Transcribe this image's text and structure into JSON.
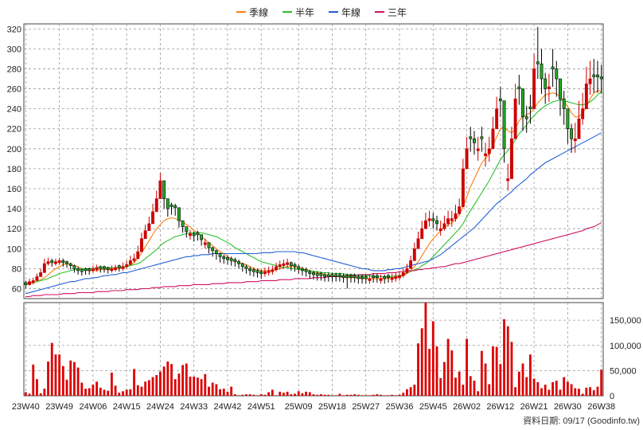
{
  "colors": {
    "up": "#cc0000",
    "down": "#22aa22",
    "grid": "#9a9a9a",
    "volume": "#dd0000"
  },
  "footer": {
    "source_text": "資料日期: 09/17  (Goodinfo.tw)"
  },
  "chart_data": {
    "type": "candlestick",
    "legend": [
      {
        "name": "季線",
        "color": "#ff7f0e"
      },
      {
        "name": "半年",
        "color": "#2bbf2b"
      },
      {
        "name": "年線",
        "color": "#1f5fd6"
      },
      {
        "name": "三年",
        "color": "#d01060"
      }
    ],
    "price_ylim": [
      50,
      325
    ],
    "price_yticks": [
      60,
      80,
      100,
      120,
      140,
      160,
      180,
      200,
      220,
      240,
      260,
      280,
      300,
      320
    ],
    "volume_ylim": [
      0,
      185000
    ],
    "volume_yticks": [
      0,
      50000,
      100000,
      150000
    ],
    "volume_ytick_labels": [
      "0",
      "50,000",
      "100,000",
      "150,000"
    ],
    "x_labels": [
      "23W40",
      "23W49",
      "24W06",
      "24W15",
      "24W24",
      "24W33",
      "24W42",
      "24W51",
      "25W09",
      "25W18",
      "25W27",
      "25W36",
      "25W45",
      "26W02",
      "26W12",
      "26W21",
      "26W30",
      "26W38"
    ],
    "x_label_index": [
      0,
      9,
      18,
      27,
      36,
      45,
      54,
      63,
      73,
      82,
      91,
      100,
      109,
      118,
      127,
      136,
      145,
      154
    ],
    "n_weeks": 155,
    "close": [
      64,
      67,
      68,
      72,
      76,
      85,
      87,
      86,
      87,
      88,
      86,
      85,
      83,
      80,
      78,
      77,
      78,
      78,
      80,
      81,
      80,
      80,
      79,
      80,
      81,
      81,
      82,
      84,
      88,
      90,
      97,
      110,
      118,
      125,
      137,
      150,
      168,
      150,
      140,
      142,
      141,
      128,
      122,
      117,
      115,
      113,
      114,
      109,
      106,
      101,
      98,
      95,
      92,
      90,
      89,
      88,
      87,
      85,
      82,
      80,
      78,
      77,
      76,
      75,
      77,
      78,
      79,
      82,
      84,
      85,
      86,
      83,
      82,
      80,
      78,
      77,
      75,
      74,
      73,
      73,
      72,
      72,
      72,
      72,
      72,
      71,
      71,
      71,
      71,
      70,
      70,
      70,
      70,
      71,
      71,
      70,
      70,
      71,
      71,
      72,
      73,
      76,
      80,
      88,
      100,
      110,
      120,
      128,
      130,
      128,
      125,
      120,
      125,
      130,
      130,
      135,
      142,
      180,
      200,
      210,
      206,
      200,
      210,
      195,
      200,
      220,
      240,
      248,
      200,
      170,
      210,
      250,
      260,
      232,
      230,
      240,
      280,
      285,
      270,
      260,
      262,
      280,
      270,
      250,
      240,
      220,
      210,
      210,
      230,
      240,
      265,
      270,
      272,
      272,
      270
    ],
    "high": [
      68,
      70,
      71,
      75,
      80,
      90,
      91,
      90,
      90,
      91,
      90,
      88,
      86,
      84,
      82,
      80,
      81,
      81,
      83,
      84,
      83,
      83,
      82,
      83,
      84,
      84,
      86,
      88,
      93,
      95,
      103,
      116,
      124,
      132,
      145,
      158,
      176,
      158,
      145,
      146,
      145,
      132,
      126,
      121,
      119,
      117,
      118,
      113,
      110,
      105,
      102,
      99,
      96,
      94,
      93,
      92,
      91,
      89,
      86,
      84,
      82,
      81,
      80,
      79,
      81,
      82,
      83,
      86,
      88,
      89,
      90,
      87,
      86,
      84,
      82,
      81,
      79,
      78,
      77,
      77,
      76,
      76,
      76,
      76,
      76,
      75,
      75,
      75,
      75,
      74,
      74,
      74,
      74,
      75,
      75,
      74,
      74,
      75,
      75,
      76,
      77,
      80,
      85,
      93,
      106,
      117,
      128,
      136,
      138,
      136,
      133,
      128,
      133,
      138,
      138,
      144,
      150,
      190,
      212,
      222,
      218,
      212,
      222,
      206,
      212,
      232,
      252,
      262,
      215,
      185,
      222,
      265,
      274,
      245,
      243,
      254,
      295,
      322,
      300,
      276,
      275,
      300,
      288,
      268,
      258,
      235,
      225,
      226,
      248,
      256,
      282,
      288,
      290,
      288,
      284
    ],
    "low": [
      60,
      63,
      64,
      68,
      72,
      80,
      83,
      82,
      83,
      84,
      82,
      81,
      79,
      76,
      74,
      73,
      74,
      74,
      76,
      77,
      76,
      76,
      75,
      76,
      77,
      77,
      78,
      80,
      84,
      86,
      92,
      104,
      112,
      118,
      130,
      142,
      156,
      140,
      132,
      134,
      133,
      121,
      116,
      111,
      109,
      107,
      108,
      103,
      100,
      95,
      92,
      89,
      86,
      85,
      84,
      83,
      82,
      80,
      77,
      75,
      73,
      72,
      71,
      70,
      72,
      73,
      74,
      77,
      79,
      80,
      81,
      78,
      77,
      75,
      73,
      72,
      70,
      69,
      68,
      68,
      67,
      67,
      67,
      67,
      67,
      66,
      60,
      66,
      66,
      65,
      65,
      65,
      65,
      66,
      66,
      65,
      65,
      66,
      66,
      67,
      68,
      71,
      75,
      83,
      94,
      104,
      113,
      120,
      122,
      120,
      118,
      113,
      118,
      122,
      122,
      127,
      134,
      168,
      188,
      197,
      194,
      188,
      197,
      182,
      187,
      206,
      225,
      232,
      186,
      158,
      196,
      234,
      244,
      218,
      216,
      225,
      262,
      270,
      255,
      245,
      247,
      262,
      252,
      233,
      224,
      205,
      196,
      196,
      214,
      224,
      248,
      254,
      256,
      256,
      255
    ],
    "up_weeks": [
      1,
      2,
      3,
      4,
      5,
      6,
      8,
      9,
      18,
      19,
      23,
      24,
      26,
      27,
      28,
      29,
      30,
      31,
      32,
      33,
      34,
      35,
      36,
      44,
      48,
      64,
      65,
      66,
      67,
      68,
      69,
      70,
      92,
      95,
      98,
      99,
      100,
      101,
      102,
      103,
      104,
      105,
      106,
      107,
      108,
      111,
      112,
      113,
      114,
      115,
      116,
      117,
      118,
      121,
      123,
      124,
      125,
      126,
      129,
      130,
      131,
      136,
      140,
      147,
      148,
      149,
      150,
      151
    ],
    "volume": [
      7000,
      4000,
      62000,
      33000,
      5000,
      14000,
      68000,
      105000,
      82000,
      82000,
      59000,
      32000,
      70000,
      67000,
      56000,
      26000,
      14000,
      15000,
      22000,
      28000,
      16000,
      12000,
      10000,
      46000,
      20000,
      6000,
      9000,
      12000,
      13000,
      53000,
      21000,
      18000,
      28000,
      31000,
      37000,
      41000,
      48000,
      58000,
      68000,
      63000,
      33000,
      44000,
      61000,
      64000,
      38000,
      38000,
      36000,
      33000,
      43000,
      18000,
      26000,
      23000,
      13000,
      14000,
      8000,
      18000,
      3000,
      1000,
      2000,
      3000,
      3000,
      2000,
      1000,
      3000,
      2000,
      7000,
      12000,
      1000,
      8000,
      6000,
      8000,
      3000,
      4000,
      9000,
      5000,
      8000,
      7000,
      3000,
      2000,
      3000,
      2000,
      2000,
      1000,
      1000,
      4000,
      1000,
      2000,
      2000,
      3000,
      2000,
      1000,
      1000,
      1000,
      2000,
      3000,
      2000,
      1000,
      1000,
      2000,
      1000,
      2000,
      6000,
      13000,
      17000,
      22000,
      104000,
      134000,
      185000,
      93000,
      148000,
      98000,
      35000,
      67000,
      113000,
      90000,
      36000,
      48000,
      22000,
      113000,
      39000,
      30000,
      9000,
      89000,
      64000,
      23000,
      98000,
      97000,
      63000,
      152000,
      138000,
      107000,
      17000,
      48000,
      64000,
      37000,
      82000,
      34000,
      27000,
      15000,
      22000,
      12000,
      27000,
      30000,
      12000,
      37000,
      28000,
      23000,
      15000,
      14000,
      4000,
      16000,
      17000,
      11000,
      18000,
      52000
    ],
    "ma_quarter": [
      64,
      65,
      66,
      67,
      69,
      71,
      74,
      77,
      80,
      82,
      84,
      85,
      84,
      83,
      82,
      80,
      79,
      78,
      78,
      78,
      79,
      79,
      79,
      79,
      80,
      80,
      81,
      82,
      84,
      86,
      90,
      96,
      102,
      108,
      114,
      120,
      124,
      128,
      130,
      131,
      130,
      129,
      127,
      124,
      122,
      118,
      116,
      112,
      109,
      106,
      103,
      100,
      97,
      95,
      92,
      90,
      88,
      86,
      85,
      84,
      82,
      80,
      79,
      78,
      78,
      78,
      78,
      79,
      80,
      81,
      82,
      82,
      82,
      81,
      80,
      79,
      78,
      77,
      76,
      75,
      74,
      73,
      73,
      72,
      72,
      71,
      71,
      71,
      71,
      71,
      70,
      70,
      70,
      70,
      70,
      70,
      70,
      70,
      71,
      71,
      72,
      73,
      75,
      78,
      82,
      87,
      93,
      99,
      105,
      110,
      114,
      118,
      121,
      124,
      126,
      129,
      134,
      142,
      152,
      162,
      170,
      178,
      186,
      190,
      195,
      203,
      212,
      220,
      222,
      218,
      216,
      220,
      228,
      232,
      234,
      236,
      240,
      246,
      250,
      254,
      255,
      256,
      255,
      252,
      248,
      242,
      236,
      232,
      232,
      236,
      242,
      250,
      256,
      258,
      258
    ],
    "ma_half": [
      65,
      66,
      66,
      67,
      68,
      69,
      70,
      72,
      73,
      75,
      76,
      77,
      78,
      79,
      80,
      80,
      80,
      80,
      80,
      81,
      81,
      81,
      81,
      81,
      81,
      81,
      82,
      82,
      83,
      84,
      85,
      87,
      90,
      93,
      96,
      99,
      103,
      106,
      108,
      110,
      112,
      113,
      114,
      115,
      116,
      116,
      116,
      116,
      115,
      114,
      113,
      112,
      110,
      108,
      106,
      104,
      101,
      99,
      97,
      95,
      93,
      91,
      89,
      87,
      86,
      85,
      84,
      83,
      82,
      81,
      81,
      80,
      80,
      79,
      79,
      78,
      78,
      77,
      77,
      76,
      76,
      76,
      75,
      75,
      75,
      75,
      74,
      74,
      74,
      73,
      73,
      73,
      73,
      72,
      72,
      72,
      72,
      72,
      72,
      73,
      73,
      74,
      76,
      77,
      79,
      80,
      83,
      85,
      88,
      92,
      96,
      100,
      104,
      108,
      112,
      116,
      120,
      125,
      132,
      138,
      144,
      150,
      156,
      162,
      168,
      175,
      182,
      189,
      194,
      198,
      203,
      209,
      215,
      219,
      224,
      229,
      233,
      237,
      240,
      243,
      245,
      247,
      248,
      249,
      248,
      247,
      246,
      245,
      244,
      244,
      245,
      247,
      250,
      254,
      257
    ],
    "ma_year": [
      55,
      56,
      57,
      58,
      59,
      60,
      61,
      62,
      63,
      64,
      65,
      66,
      67,
      67,
      68,
      69,
      70,
      70,
      71,
      71,
      72,
      73,
      73,
      74,
      74,
      75,
      76,
      76,
      77,
      78,
      79,
      80,
      81,
      82,
      83,
      84,
      85,
      86,
      87,
      88,
      89,
      90,
      91,
      92,
      92,
      93,
      93,
      94,
      94,
      94,
      95,
      95,
      95,
      95,
      95,
      95,
      95,
      95,
      95,
      95,
      95,
      95,
      95,
      96,
      96,
      96,
      96,
      97,
      97,
      97,
      97,
      97,
      97,
      96,
      96,
      95,
      94,
      93,
      92,
      91,
      90,
      89,
      88,
      87,
      86,
      85,
      84,
      83,
      82,
      81,
      80,
      80,
      79,
      78,
      78,
      78,
      78,
      79,
      79,
      80,
      80,
      81,
      82,
      83,
      84,
      85,
      86,
      87,
      88,
      90,
      92,
      94,
      97,
      100,
      103,
      106,
      109,
      112,
      115,
      118,
      121,
      125,
      129,
      133,
      137,
      141,
      145,
      148,
      151,
      154,
      157,
      161,
      164,
      167,
      170,
      174,
      177,
      180,
      183,
      186,
      188,
      190,
      192,
      194,
      196,
      198,
      200,
      202,
      204,
      206,
      208,
      210,
      212,
      214,
      216
    ],
    "ma_three": [
      52,
      52,
      53,
      53,
      53,
      54,
      54,
      54,
      54,
      54,
      55,
      55,
      55,
      55,
      56,
      56,
      56,
      56,
      56,
      57,
      57,
      57,
      57,
      58,
      58,
      58,
      58,
      59,
      59,
      59,
      59,
      60,
      60,
      60,
      61,
      61,
      61,
      62,
      62,
      62,
      62,
      63,
      63,
      63,
      63,
      64,
      64,
      64,
      64,
      64,
      65,
      65,
      65,
      65,
      66,
      66,
      66,
      66,
      66,
      67,
      67,
      67,
      67,
      68,
      68,
      68,
      68,
      68,
      69,
      69,
      69,
      69,
      70,
      70,
      70,
      70,
      70,
      71,
      71,
      71,
      71,
      72,
      72,
      72,
      72,
      73,
      73,
      73,
      73,
      74,
      74,
      74,
      74,
      75,
      75,
      75,
      75,
      76,
      76,
      76,
      77,
      77,
      78,
      78,
      78,
      79,
      79,
      80,
      80,
      81,
      81,
      82,
      82,
      83,
      84,
      85,
      85,
      86,
      87,
      88,
      89,
      90,
      91,
      92,
      93,
      94,
      95,
      96,
      97,
      98,
      99,
      100,
      101,
      102,
      103,
      104,
      105,
      106,
      107,
      108,
      109,
      110,
      111,
      112,
      113,
      114,
      115,
      116,
      117,
      118,
      120,
      121,
      122,
      124,
      126
    ]
  }
}
